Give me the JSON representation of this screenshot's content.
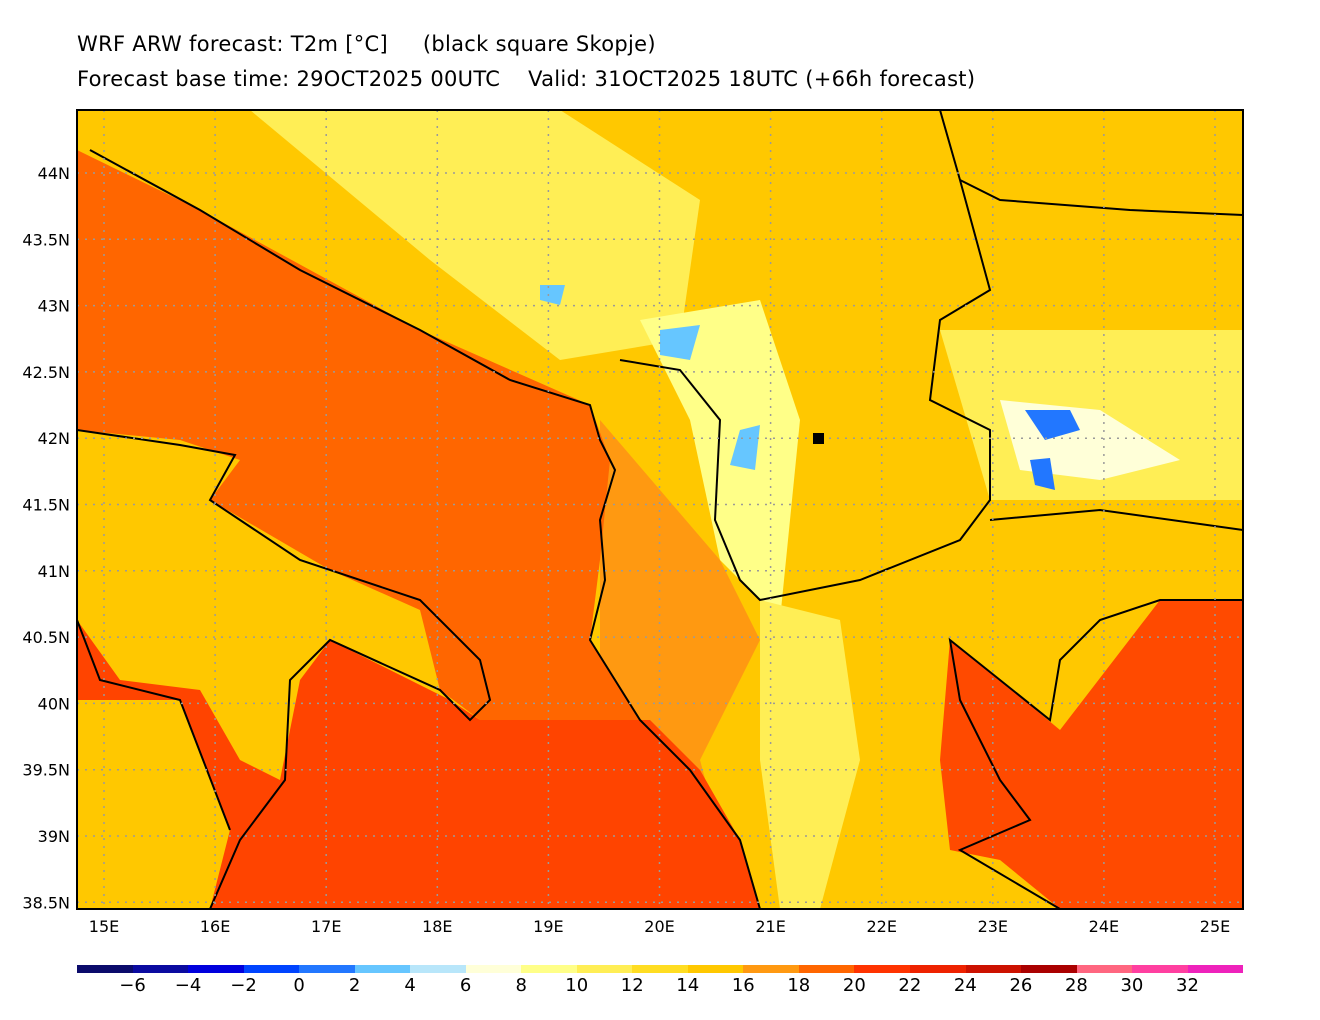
{
  "header": {
    "title_line1": "WRF ARW forecast: T2m [°C]     (black square Skopje)",
    "title_line2": "Forecast base time: 29OCT2025 00UTC    Valid: 31OCT2025 18UTC (+66h forecast)"
  },
  "map": {
    "lon_labels": [
      "15E",
      "16E",
      "17E",
      "18E",
      "19E",
      "20E",
      "21E",
      "22E",
      "23E",
      "24E",
      "25E"
    ],
    "lat_labels": [
      "44N",
      "43.5N",
      "43N",
      "42.5N",
      "42N",
      "41.5N",
      "41N",
      "40.5N",
      "40N",
      "39.5N",
      "39N",
      "38.5N"
    ],
    "marker": {
      "name": "Skopje",
      "lon": 21.43,
      "lat": 42.0
    }
  },
  "colorbar": {
    "colors": [
      "#0b0b6b",
      "#0a0aa0",
      "#0000dd",
      "#0044ff",
      "#2277ff",
      "#66c6ff",
      "#b8e6fa",
      "#ffffd8",
      "#ffff88",
      "#ffee55",
      "#ffdd22",
      "#ffc800",
      "#ff9911",
      "#ff6600",
      "#ff3300",
      "#ee2200",
      "#cc1100",
      "#aa0000",
      "#ff6680",
      "#ff3fa0",
      "#ee22bb"
    ],
    "labels": [
      "-6",
      "-4",
      "-2",
      "0",
      "2",
      "4",
      "6",
      "8",
      "10",
      "12",
      "14",
      "16",
      "18",
      "20",
      "22",
      "24",
      "26",
      "28",
      "30",
      "32"
    ]
  }
}
